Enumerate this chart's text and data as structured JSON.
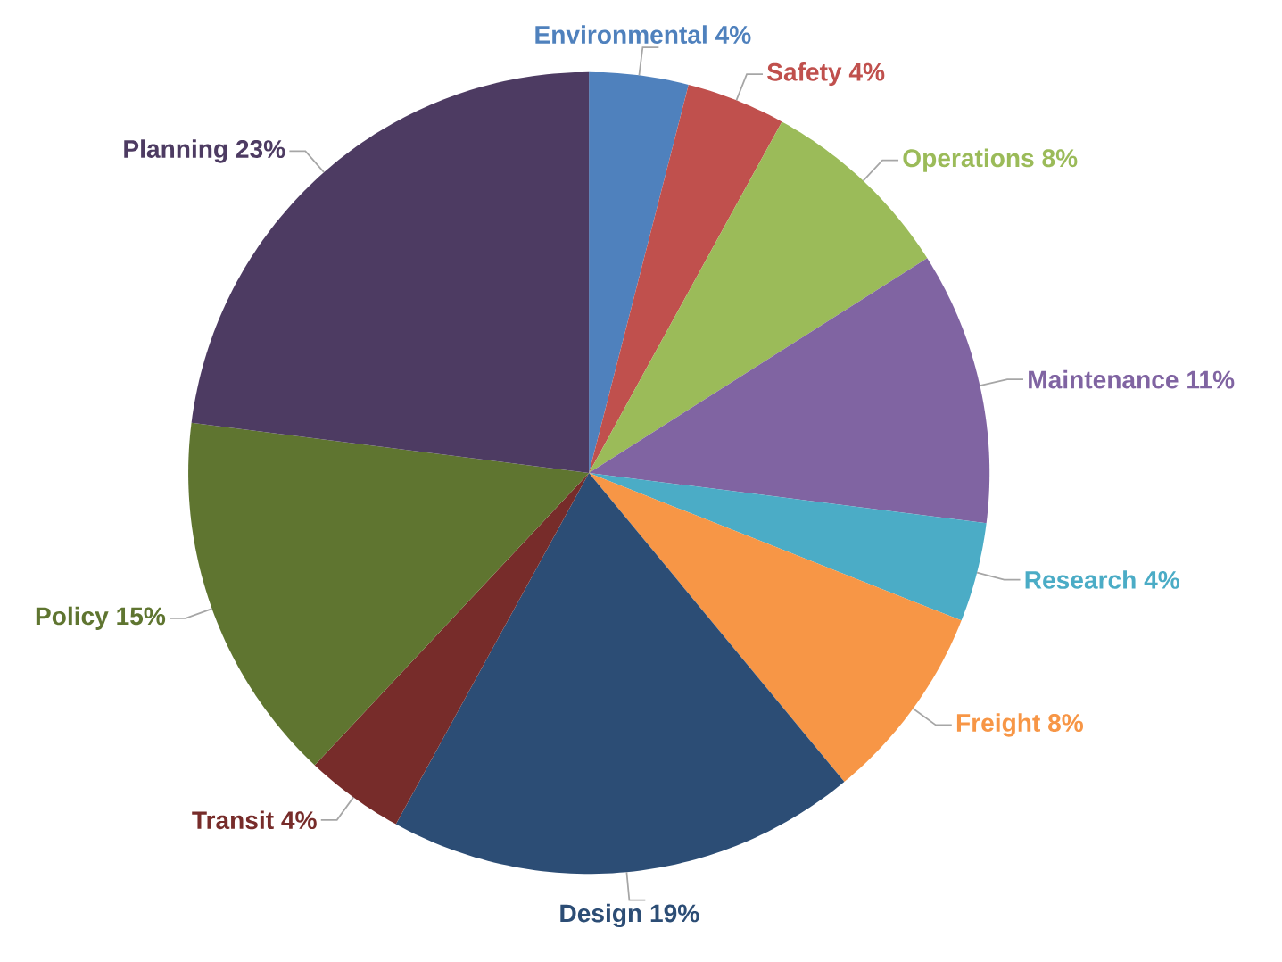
{
  "chart_data": {
    "type": "pie",
    "categories": [
      "Environmental",
      "Safety",
      "Operations",
      "Maintenance",
      "Research",
      "Freight",
      "Design",
      "Transit",
      "Policy",
      "Planning"
    ],
    "values": [
      4,
      4,
      8,
      11,
      4,
      8,
      19,
      4,
      15,
      23
    ],
    "value_labels": [
      "4%",
      "4%",
      "8%",
      "11%",
      "4%",
      "8%",
      "19%",
      "4%",
      "15%",
      "23%"
    ],
    "colors": [
      "#4f81bd",
      "#c0504d",
      "#9bbb59",
      "#8064a2",
      "#4bacc6",
      "#f79646",
      "#2c4d75",
      "#772c2a",
      "#5f7530",
      "#4d3b62"
    ]
  }
}
